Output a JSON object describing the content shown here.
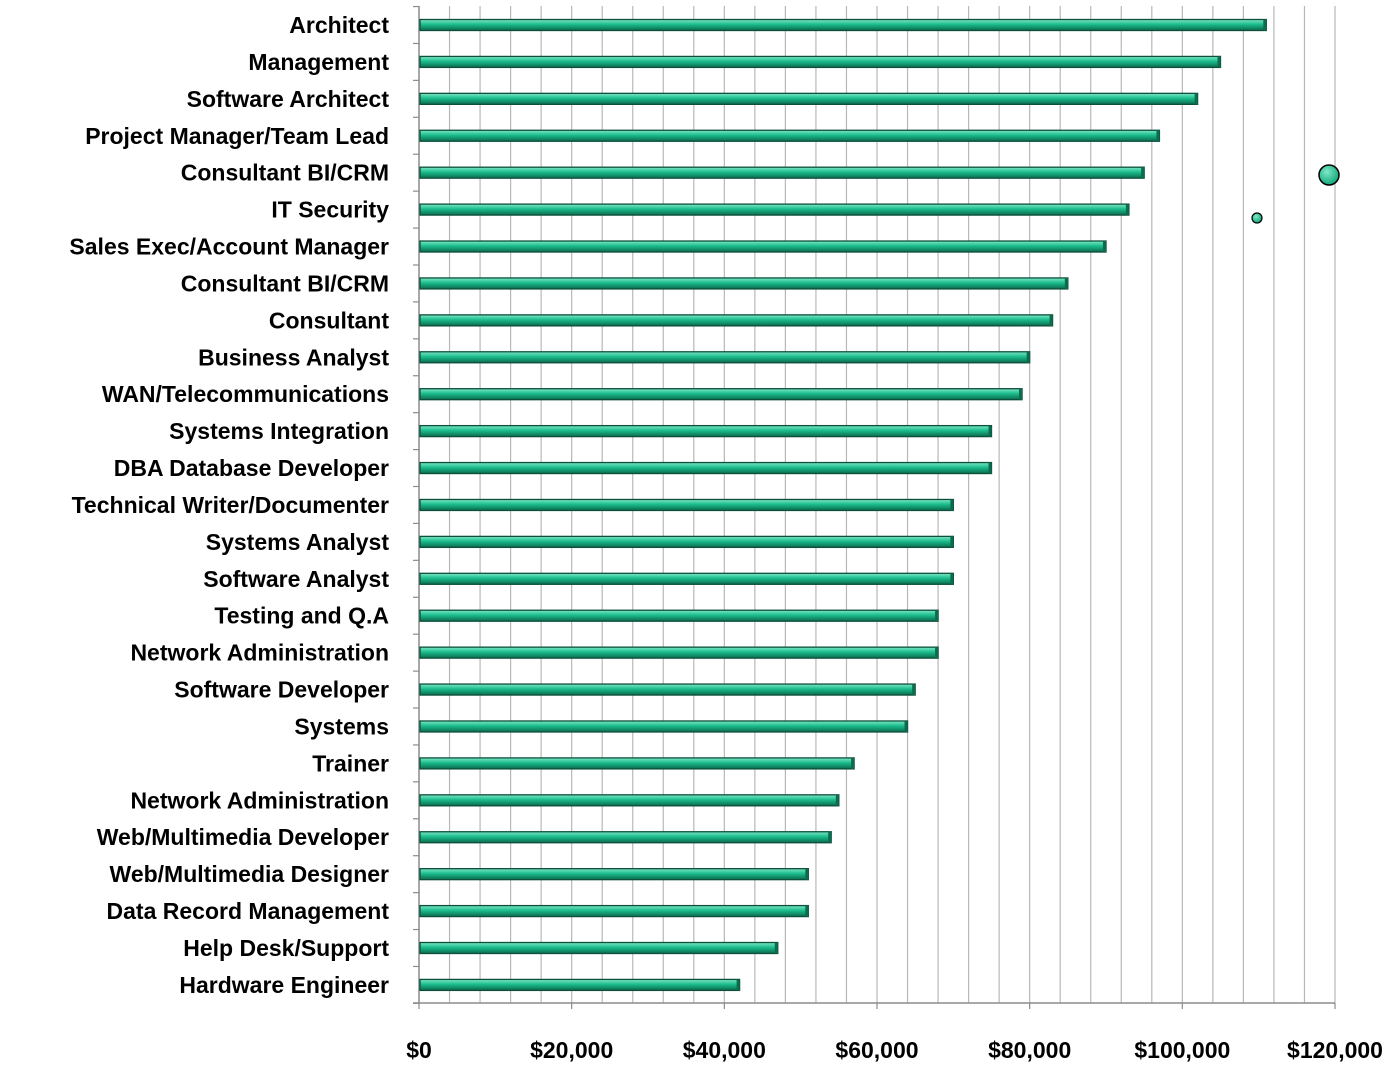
{
  "chart_data": {
    "type": "bar",
    "orientation": "horizontal",
    "title": "",
    "xlabel": "",
    "ylabel": "",
    "xlim": [
      0,
      120000
    ],
    "x_ticks": [
      0,
      20000,
      40000,
      60000,
      80000,
      100000,
      120000
    ],
    "x_tick_labels": [
      "$0",
      "$20,000",
      "$40,000",
      "$60,000",
      "$80,000",
      "$100,000",
      "$120,000"
    ],
    "grid": "vertical",
    "legend": "none",
    "bar_color": "#1abc8c",
    "bar_edge_color": "#0d4f3a",
    "categories": [
      "Architect",
      "Management",
      "Software Architect",
      "Project Manager/Team Lead",
      "Consultant BI/CRM",
      "IT Security",
      "Sales  Exec/Account  Manager",
      "Consultant BI/CRM",
      "Consultant",
      "Business Analyst",
      "WAN/Telecommunications",
      "Systems Integration",
      "DBA Database Developer",
      "Technical Writer/Documenter",
      "Systems Analyst",
      "Software Analyst",
      "Testing and Q.A",
      "Network Administration",
      "Software Developer",
      "Systems",
      "Trainer",
      "Network Administration",
      "Web/Multimedia Developer",
      "Web/Multimedia Designer",
      "Data Record Management",
      "Help Desk/Support",
      "Hardware Engineer"
    ],
    "values": [
      111000,
      105000,
      102000,
      97000,
      95000,
      93000,
      90000,
      85000,
      83000,
      80000,
      79000,
      75000,
      75000,
      70000,
      70000,
      70000,
      68000,
      68000,
      65000,
      64000,
      57000,
      55000,
      54000,
      51000,
      51000,
      47000,
      42000
    ]
  }
}
